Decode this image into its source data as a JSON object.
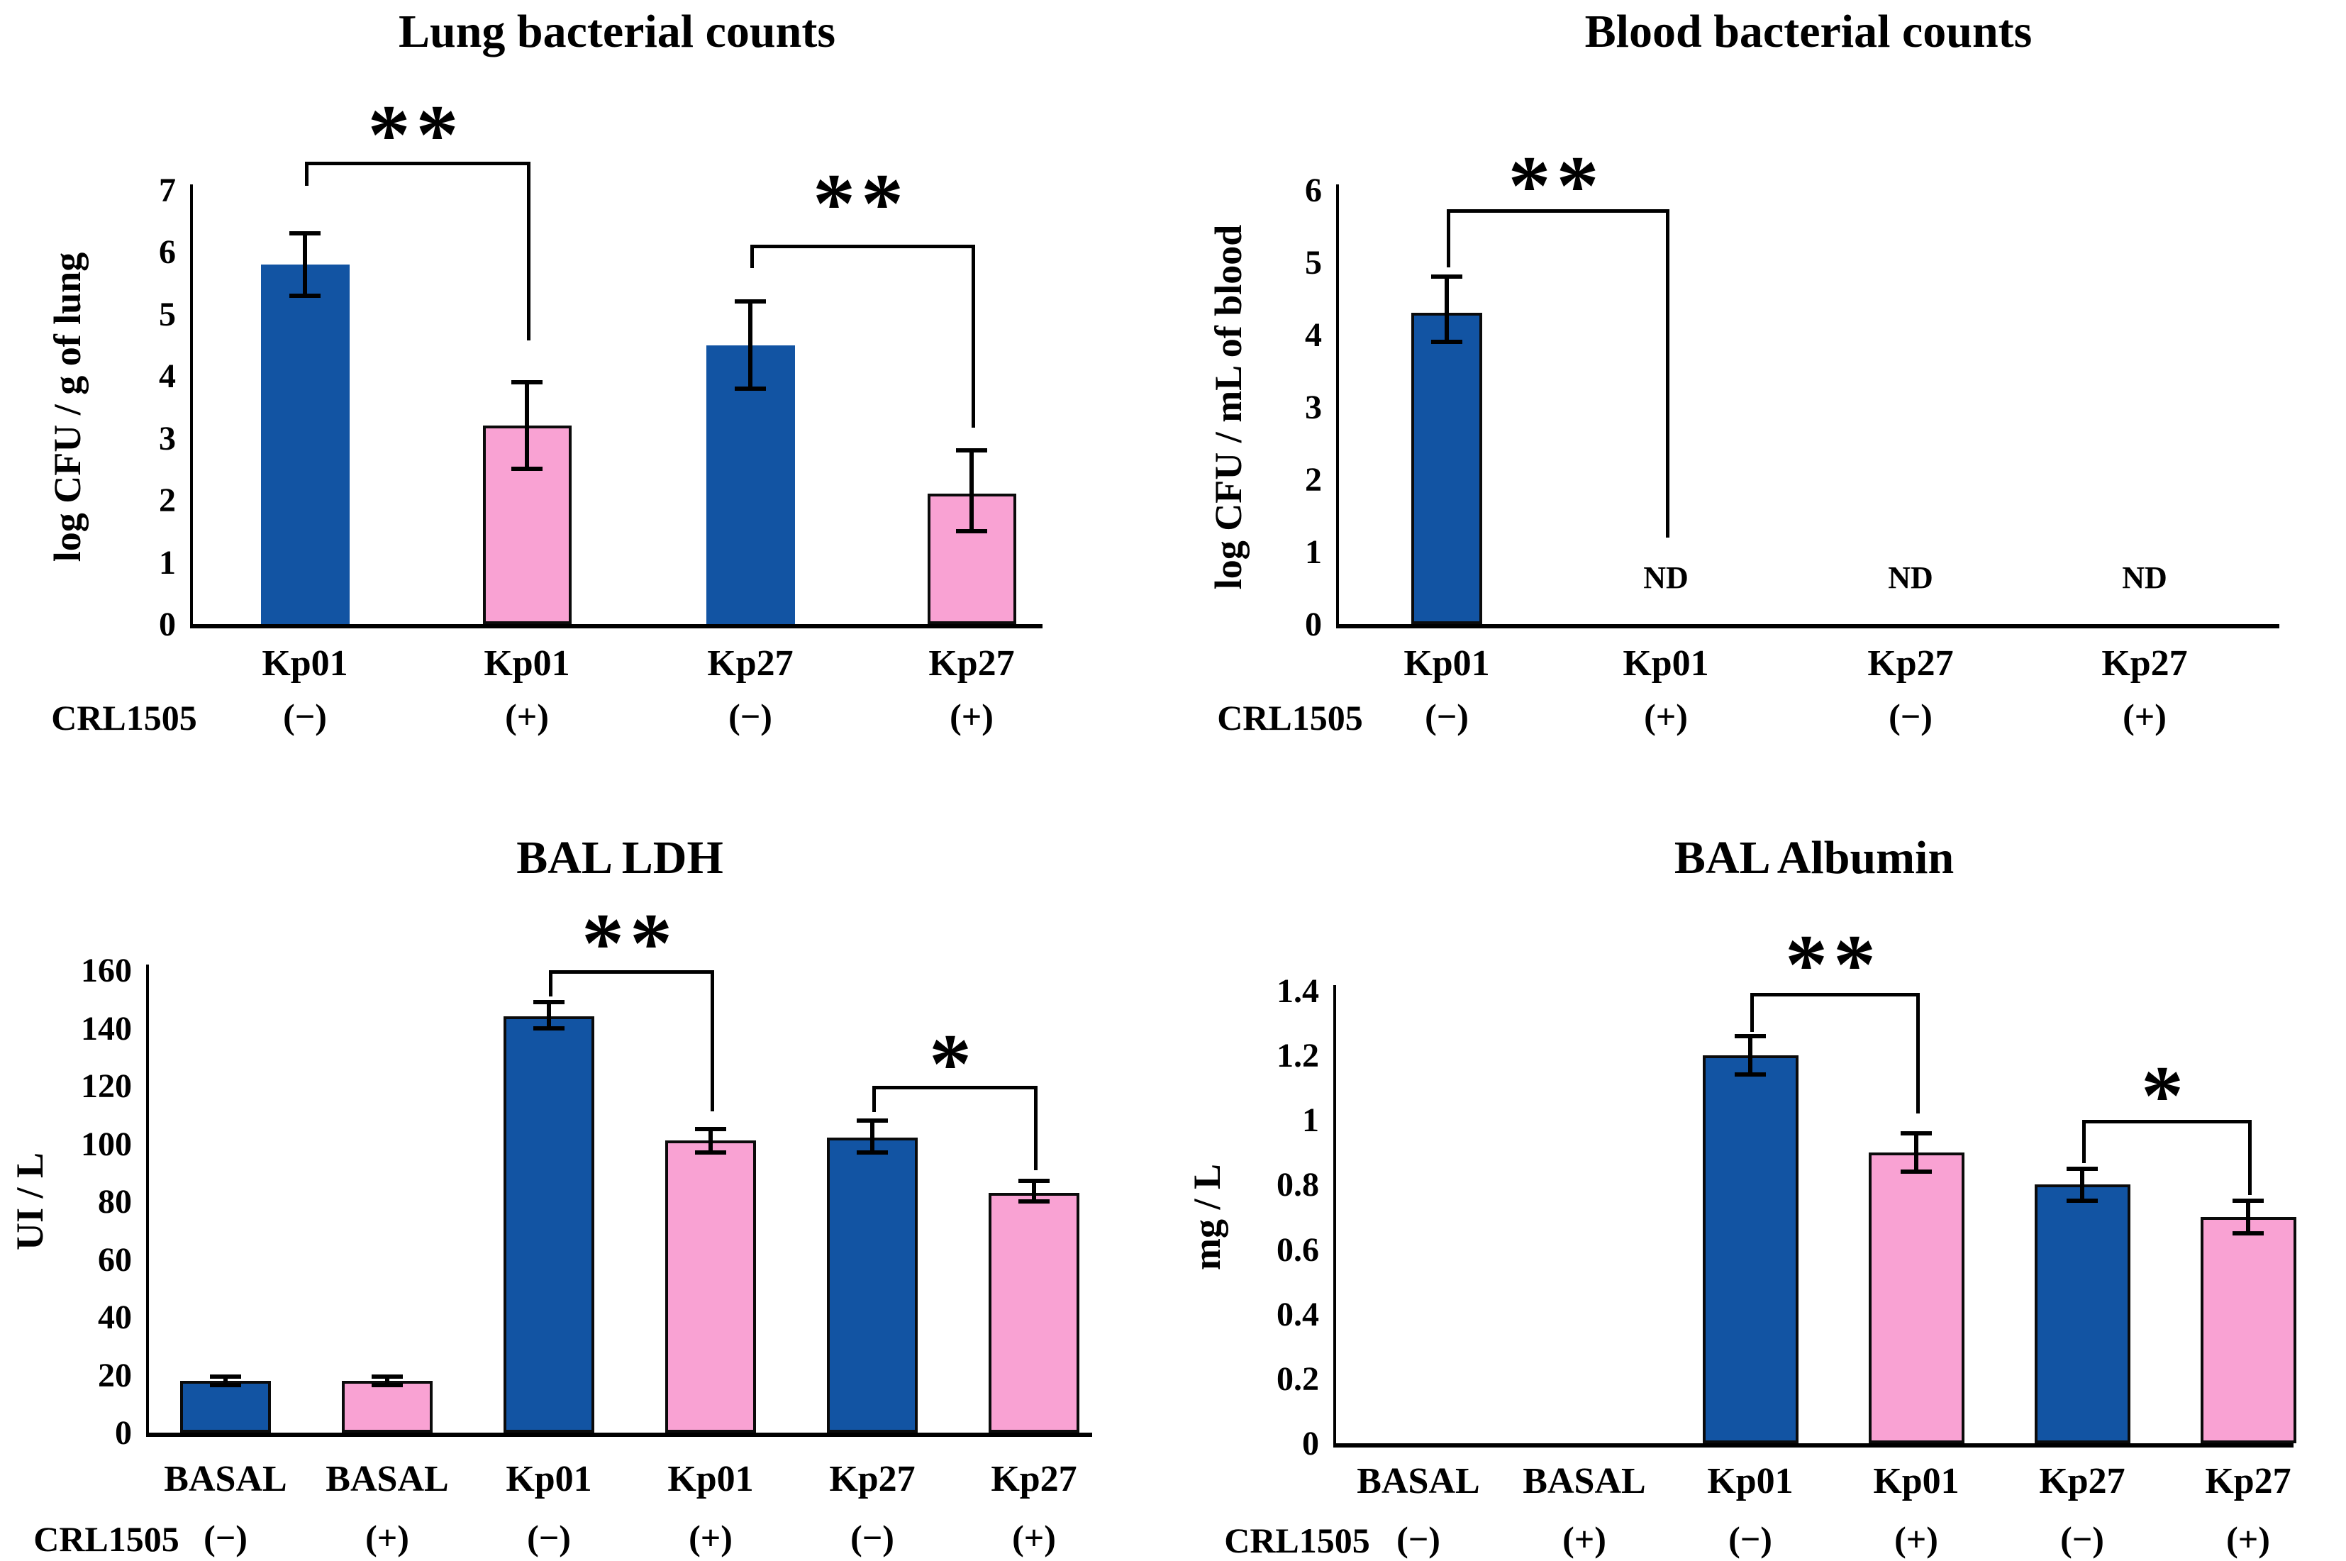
{
  "colors": {
    "blue": "#1254A3",
    "pink": "#F9A2D3",
    "line": "#000000",
    "background": "#FFFFFF"
  },
  "chart_data": [
    {
      "type": "bar",
      "id": "lung",
      "title": "Lung bacterial counts",
      "ylabel": "log CFU / g of lung",
      "row_label": "CRL1505",
      "ylim": [
        0,
        7
      ],
      "yticks": [
        "0",
        "1",
        "2",
        "3",
        "4",
        "5",
        "6",
        "7"
      ],
      "grid": false,
      "legend": "none",
      "categories": [
        "Kp01",
        "Kp01",
        "Kp27",
        "Kp27"
      ],
      "treatments": [
        "(−)",
        "(+)",
        "(−)",
        "(+)"
      ],
      "values": [
        5.8,
        3.2,
        4.5,
        2.1
      ],
      "errors_low": [
        5.3,
        2.5,
        3.8,
        1.5
      ],
      "errors_high": [
        6.3,
        3.9,
        5.2,
        2.8
      ],
      "bar_colors": [
        "blue",
        "pink",
        "blue",
        "pink"
      ],
      "nd": [],
      "significance": [
        {
          "label": "**",
          "from": 0,
          "to": 1
        },
        {
          "label": "**",
          "from": 2,
          "to": 3
        }
      ]
    },
    {
      "type": "bar",
      "id": "blood",
      "title": "Blood bacterial counts",
      "ylabel": "log CFU / mL of blood",
      "row_label": "CRL1505",
      "ylim": [
        0,
        6
      ],
      "yticks": [
        "0",
        "1",
        "2",
        "3",
        "4",
        "5",
        "6"
      ],
      "grid": false,
      "legend": "none",
      "categories": [
        "Kp01",
        "Kp01",
        "Kp27",
        "Kp27"
      ],
      "treatments": [
        "(−)",
        "(+)",
        "(−)",
        "(+)"
      ],
      "values": [
        4.3,
        null,
        null,
        null
      ],
      "errors_low": [
        3.9,
        null,
        null,
        null
      ],
      "errors_high": [
        4.8,
        null,
        null,
        null
      ],
      "bar_colors": [
        "blue",
        "pink",
        "blue",
        "pink"
      ],
      "nd": [
        {
          "index": 1,
          "text": "ND"
        },
        {
          "index": 2,
          "text": "ND"
        },
        {
          "index": 3,
          "text": "ND"
        }
      ],
      "significance": [
        {
          "label": "**",
          "from": 0,
          "to": 1
        }
      ]
    },
    {
      "type": "bar",
      "id": "ldh",
      "title": "BAL LDH",
      "ylabel": "UI / L",
      "row_label": "CRL1505",
      "ylim": [
        0,
        160
      ],
      "yticks": [
        "0",
        "20",
        "40",
        "60",
        "80",
        "100",
        "120",
        "140",
        "160"
      ],
      "grid": false,
      "legend": "none",
      "categories": [
        "BASAL",
        "BASAL",
        "Kp01",
        "Kp01",
        "Kp27",
        "Kp27"
      ],
      "treatments": [
        "(−)",
        "(+)",
        "(−)",
        "(+)",
        "(−)",
        "(+)"
      ],
      "values": [
        18,
        18,
        144,
        101,
        102,
        83
      ],
      "errors_low": [
        16.5,
        16.5,
        140,
        97,
        97,
        80
      ],
      "errors_high": [
        19.5,
        19.5,
        149,
        105,
        108,
        87
      ],
      "bar_colors": [
        "blue",
        "pink",
        "blue",
        "pink",
        "blue",
        "pink"
      ],
      "nd": [],
      "significance": [
        {
          "label": "**",
          "from": 2,
          "to": 3
        },
        {
          "label": "*",
          "from": 4,
          "to": 5
        }
      ]
    },
    {
      "type": "bar",
      "id": "albumin",
      "title": "BAL Albumin",
      "ylabel": "mg / L",
      "row_label": "CRL1505",
      "ylim": [
        0,
        1.4
      ],
      "yticks": [
        "0",
        "0.2",
        "0.4",
        "0.6",
        "0.8",
        "1",
        "1.2",
        "1.4"
      ],
      "grid": false,
      "legend": "none",
      "categories": [
        "BASAL",
        "BASAL",
        "Kp01",
        "Kp01",
        "Kp27",
        "Kp27"
      ],
      "treatments": [
        "(−)",
        "(+)",
        "(−)",
        "(+)",
        "(−)",
        "(+)"
      ],
      "values": [
        null,
        null,
        1.2,
        0.9,
        0.8,
        0.7
      ],
      "errors_low": [
        null,
        null,
        1.14,
        0.84,
        0.75,
        0.65
      ],
      "errors_high": [
        null,
        null,
        1.26,
        0.96,
        0.85,
        0.75
      ],
      "bar_colors": [
        "blue",
        "pink",
        "blue",
        "pink",
        "blue",
        "pink"
      ],
      "nd": [],
      "significance": [
        {
          "label": "**",
          "from": 2,
          "to": 3
        },
        {
          "label": "*",
          "from": 4,
          "to": 5
        }
      ]
    }
  ]
}
